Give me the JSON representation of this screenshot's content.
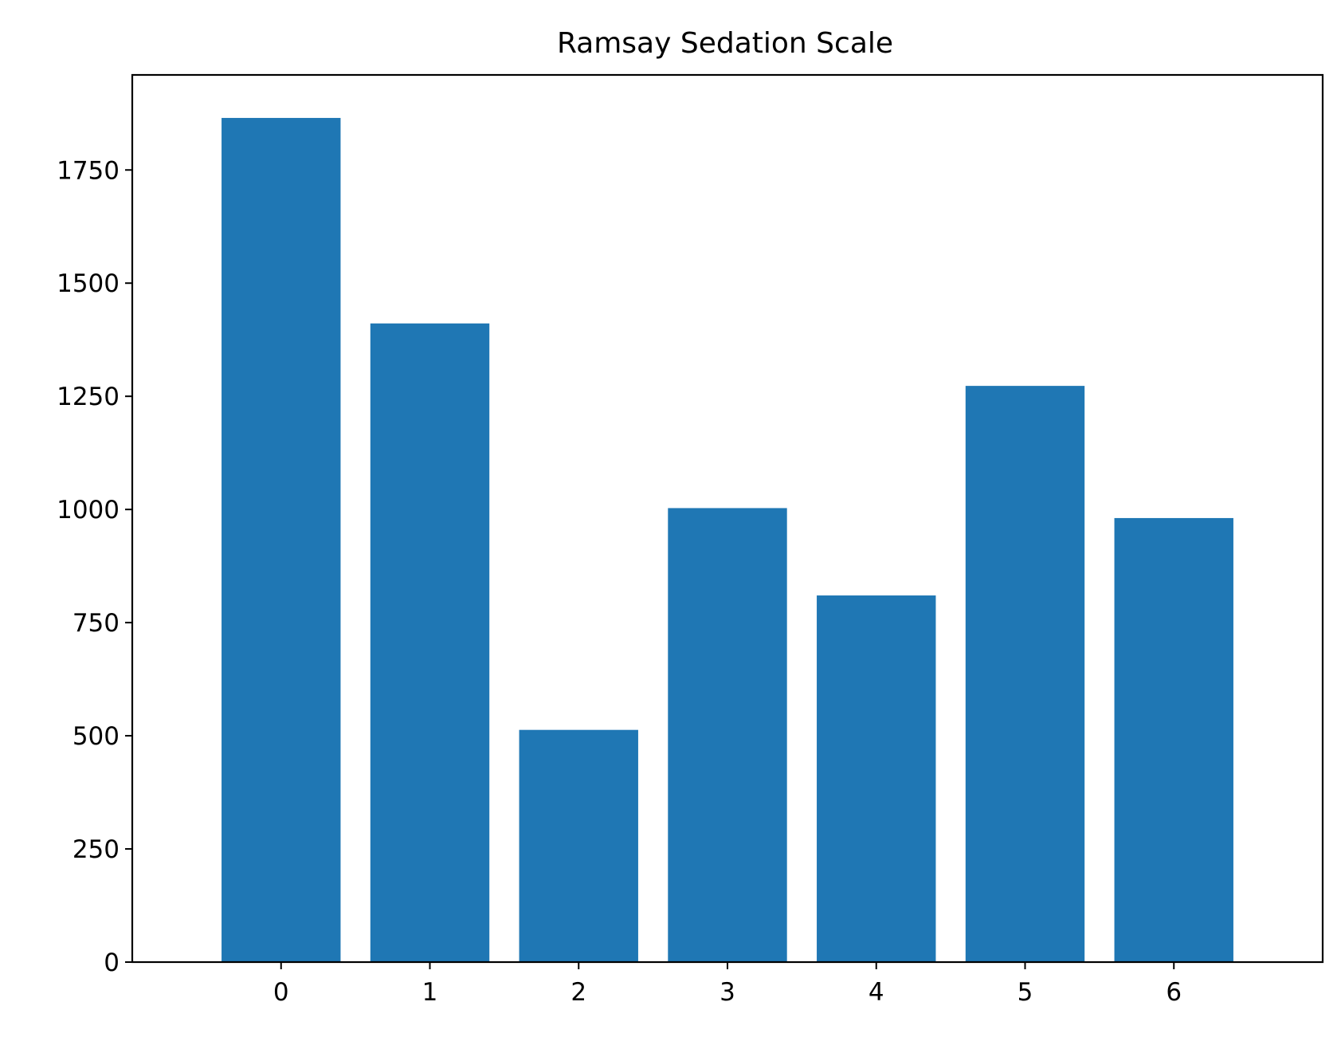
{
  "chart_data": {
    "type": "bar",
    "title": "Ramsay Sedation Scale",
    "xlabel": "",
    "ylabel": "",
    "categories": [
      "0",
      "1",
      "2",
      "3",
      "4",
      "5",
      "6"
    ],
    "values": [
      1865,
      1411,
      513,
      1003,
      810,
      1273,
      981
    ],
    "xlim": [
      -1,
      7
    ],
    "ylim": [
      0,
      1960
    ],
    "yticks": [
      0,
      250,
      500,
      750,
      1000,
      1250,
      1500,
      1750
    ],
    "ytick_labels": [
      "0",
      "250",
      "500",
      "750",
      "1000",
      "1250",
      "1500",
      "1750"
    ],
    "grid": false,
    "legend": "none",
    "bar_color": "#1f77b4"
  }
}
